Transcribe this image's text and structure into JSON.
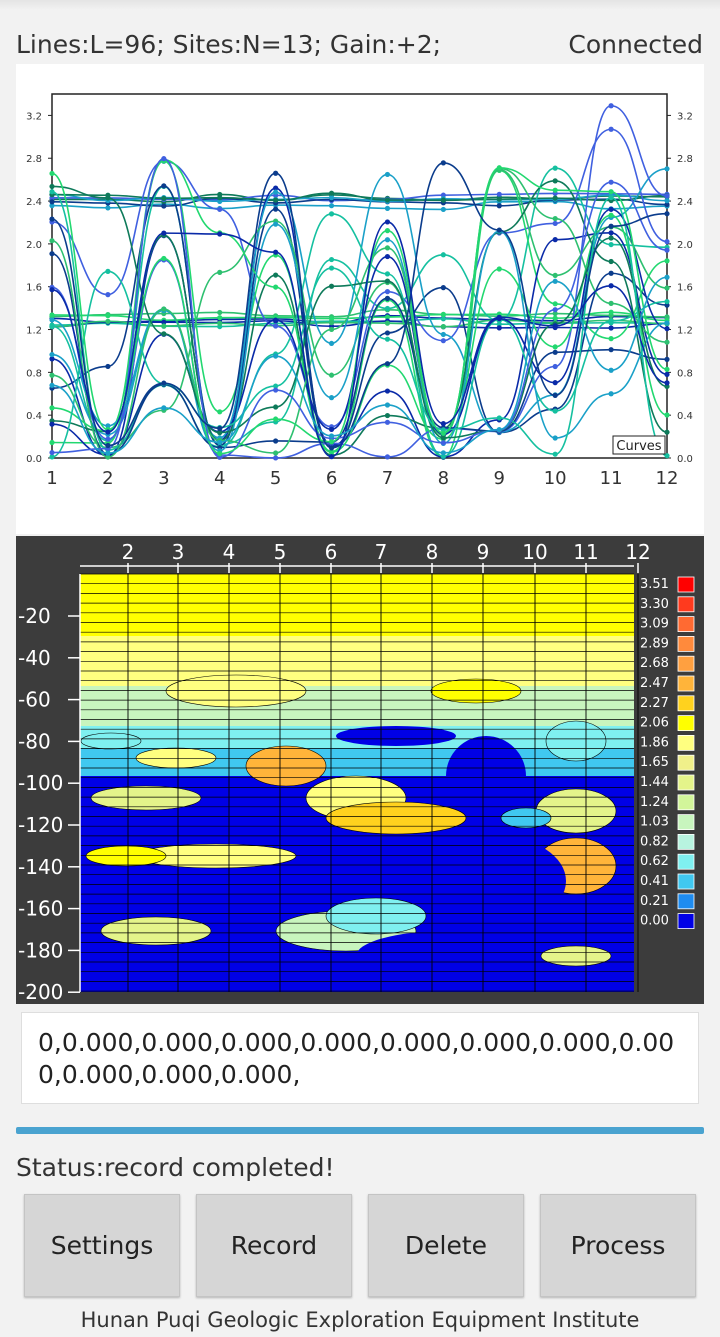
{
  "header": {
    "info": "Lines:L=96;  Sites:N=13;  Gain:+2;",
    "connection_status": "Connected"
  },
  "curves_plot": {
    "legend_label": "Curves",
    "x_ticks": [
      "1",
      "2",
      "3",
      "4",
      "5",
      "6",
      "7",
      "8",
      "9",
      "10",
      "11",
      "12"
    ],
    "y_ticks": [
      "0.0",
      "0.4",
      "0.8",
      "1.2",
      "1.6",
      "2.0",
      "2.4",
      "2.8",
      "3.2"
    ],
    "colors": [
      "#0a2aa8",
      "#1aa0c8",
      "#2ec070",
      "#0e7a5a",
      "#15c0a0",
      "#4060e0",
      "#22d870",
      "#0b3c8c"
    ]
  },
  "profile_plot": {
    "x_ticks": [
      "2",
      "3",
      "4",
      "5",
      "6",
      "7",
      "8",
      "9",
      "10",
      "11",
      "12"
    ],
    "depth_ticks": [
      "-20",
      "-40",
      "-60",
      "-80",
      "-100",
      "-120",
      "-140",
      "-160",
      "-180",
      "-200"
    ],
    "scale": [
      {
        "label": "3.51",
        "color": "#ff0000"
      },
      {
        "label": "3.30",
        "color": "#ff3a1e"
      },
      {
        "label": "3.09",
        "color": "#ff6a32"
      },
      {
        "label": "2.89",
        "color": "#ff8a3c"
      },
      {
        "label": "2.68",
        "color": "#ffa040"
      },
      {
        "label": "2.47",
        "color": "#ffb43a"
      },
      {
        "label": "2.27",
        "color": "#ffd21e"
      },
      {
        "label": "2.06",
        "color": "#ffff00"
      },
      {
        "label": "1.86",
        "color": "#ffff80"
      },
      {
        "label": "1.65",
        "color": "#f0f08a"
      },
      {
        "label": "1.44",
        "color": "#e4f48a"
      },
      {
        "label": "1.24",
        "color": "#d2f59a"
      },
      {
        "label": "1.03",
        "color": "#c8f5be"
      },
      {
        "label": "0.82",
        "color": "#b8f4e0"
      },
      {
        "label": "0.62",
        "color": "#7ff0f0"
      },
      {
        "label": "0.41",
        "color": "#40c8f0"
      },
      {
        "label": "0.21",
        "color": "#1e8cf0"
      },
      {
        "label": "0.00",
        "color": "#0000e6"
      }
    ]
  },
  "data_line": "0,0.000,0.000,0.000,0.000,0.000,0.000,0.000,0.000,0.000,0.000,0.000,",
  "status": "Status:record completed!",
  "buttons": {
    "settings": "Settings",
    "record": "Record",
    "delete": "Delete",
    "process": "Process"
  },
  "footer": "Hunan Puqi Geologic Exploration Equipment Institute"
}
